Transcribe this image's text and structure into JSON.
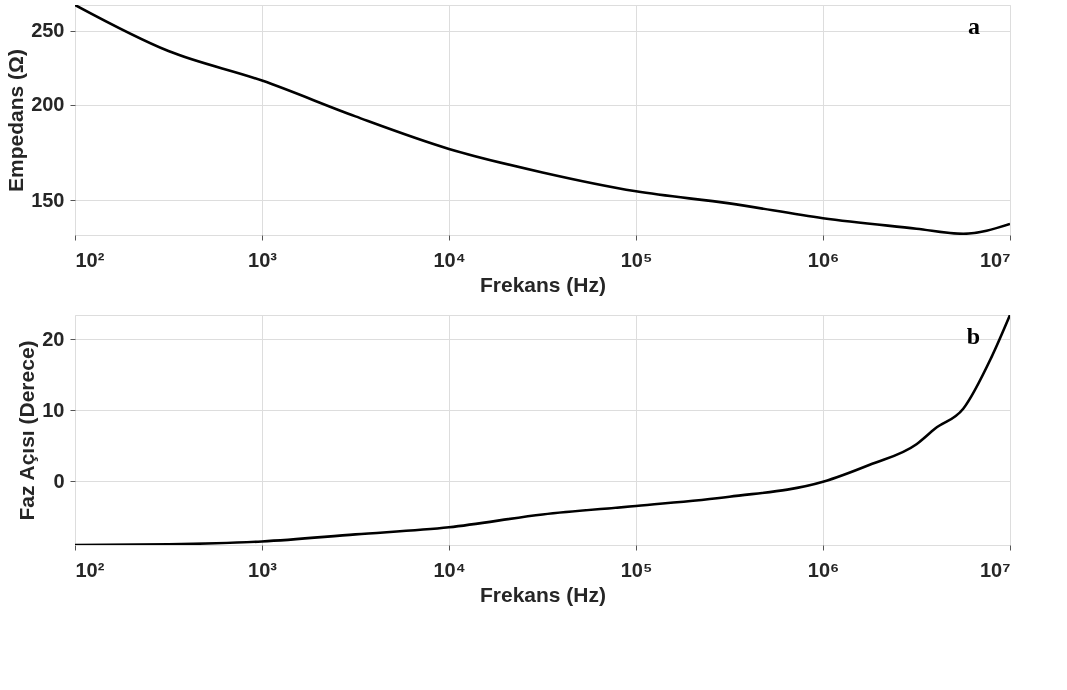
{
  "chart_data": [
    {
      "type": "line",
      "xlabel": "Frekans (Hz)",
      "ylabel": "Empedans (Ω)",
      "log": "xy",
      "grid": true,
      "annotations": [
        "a"
      ],
      "x": [
        100,
        316,
        1000,
        3162,
        10000,
        31623,
        100000,
        316228,
        1000000,
        3162278,
        5623413,
        10000000
      ],
      "series": [
        {
          "color": "#000000",
          "values": [
            270,
            235,
            215,
            193,
            175,
            163,
            154,
            148.5,
            142,
            137.6,
            135.5,
            139.6
          ]
        }
      ],
      "xlim": [
        100,
        10000000
      ],
      "ylim": [
        135,
        270
      ],
      "xticks": [
        {
          "value": 100,
          "label": "10²"
        },
        {
          "value": 1000,
          "label": "10³"
        },
        {
          "value": 10000,
          "label": "10⁴"
        },
        {
          "value": 100000,
          "label": "10⁵"
        },
        {
          "value": 1000000,
          "label": "10⁶"
        },
        {
          "value": 10000000,
          "label": "10⁷"
        }
      ],
      "yticks": [
        150,
        200,
        250
      ]
    },
    {
      "type": "line",
      "xlabel": "Frekans (Hz)",
      "ylabel": "Faz Açısı (Derece)",
      "log": "x",
      "grid": true,
      "annotations": [
        "b"
      ],
      "x": [
        100,
        316,
        1000,
        3162,
        10000,
        31623,
        100000,
        316228,
        1000000,
        1778279,
        3162278,
        3981072,
        5623413,
        7943282,
        10000000
      ],
      "series": [
        {
          "color": "#000000",
          "values": [
            -9,
            -8.9,
            -8.5,
            -7.5,
            -6.5,
            -4.7,
            -3.5,
            -2.2,
            -0.1,
            2.3,
            5.2,
            7.4,
            10.2,
            17.4,
            23.4
          ]
        }
      ],
      "xlim": [
        100,
        10000000
      ],
      "ylim": [
        -9,
        23.4
      ],
      "xticks": [
        {
          "value": 100,
          "label": "10²"
        },
        {
          "value": 1000,
          "label": "10³"
        },
        {
          "value": 10000,
          "label": "10⁴"
        },
        {
          "value": 100000,
          "label": "10⁵"
        },
        {
          "value": 1000000,
          "label": "10⁶"
        },
        {
          "value": 10000000,
          "label": "10⁷"
        }
      ],
      "yticks": [
        0,
        10,
        20
      ]
    }
  ]
}
